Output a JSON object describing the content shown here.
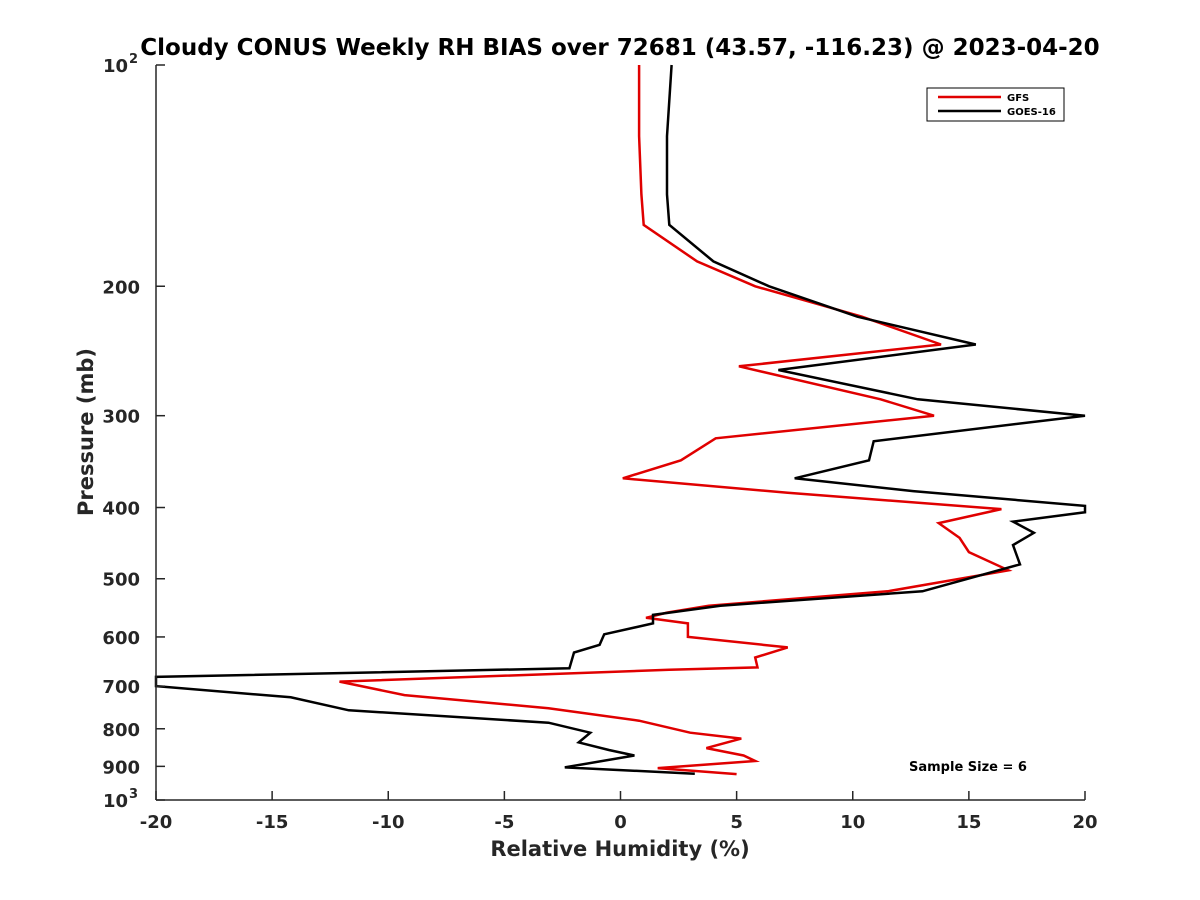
{
  "chart_data": {
    "type": "line",
    "title": "Cloudy CONUS Weekly RH BIAS over 72681 (43.57, -116.23) @ 2023-04-20",
    "xlabel": "Relative Humidity (%)",
    "ylabel": "Pressure (mb)",
    "xlim": [
      -20,
      20
    ],
    "ylim": [
      100,
      1000
    ],
    "y_scale": "log",
    "y_reversed": true,
    "x_ticks": [
      "-20",
      "-15",
      "-10",
      "-5",
      "0",
      "5",
      "10",
      "15",
      "20"
    ],
    "y_ticks": [
      {
        "value": 100,
        "base": "10",
        "exp": "2"
      },
      {
        "value": 200,
        "label": "200"
      },
      {
        "value": 300,
        "label": "300"
      },
      {
        "value": 400,
        "label": "400"
      },
      {
        "value": 500,
        "label": "500"
      },
      {
        "value": 600,
        "label": "600"
      },
      {
        "value": 700,
        "label": "700"
      },
      {
        "value": 800,
        "label": "800"
      },
      {
        "value": 900,
        "label": "900"
      },
      {
        "value": 1000,
        "base": "10",
        "exp": "3"
      }
    ],
    "grid": false,
    "legend_position": "top-right",
    "annotation": "Sample Size = 6",
    "series": [
      {
        "name": "GFS",
        "color": "#e00000",
        "points": [
          [
            0.8,
            100
          ],
          [
            0.8,
            125
          ],
          [
            0.9,
            150
          ],
          [
            1.0,
            165
          ],
          [
            3.3,
            185
          ],
          [
            5.8,
            200
          ],
          [
            10.4,
            220
          ],
          [
            13.8,
            240
          ],
          [
            5.1,
            257
          ],
          [
            11.2,
            285
          ],
          [
            13.5,
            300
          ],
          [
            4.1,
            322
          ],
          [
            2.6,
            345
          ],
          [
            0.1,
            365
          ],
          [
            7.2,
            382
          ],
          [
            16.4,
            402
          ],
          [
            13.7,
            420
          ],
          [
            14.6,
            440
          ],
          [
            15.0,
            460
          ],
          [
            16.7,
            487
          ],
          [
            11.5,
            520
          ],
          [
            3.8,
            544
          ],
          [
            2.0,
            556
          ],
          [
            1.1,
            565
          ],
          [
            2.9,
            575
          ],
          [
            2.9,
            600
          ],
          [
            7.2,
            620
          ],
          [
            5.8,
            640
          ],
          [
            5.9,
            660
          ],
          [
            2.1,
            665
          ],
          [
            -12.1,
            690
          ],
          [
            -9.3,
            720
          ],
          [
            -3.1,
            750
          ],
          [
            0.8,
            780
          ],
          [
            3.0,
            810
          ],
          [
            5.2,
            825
          ],
          [
            3.7,
            850
          ],
          [
            5.3,
            870
          ],
          [
            5.8,
            885
          ],
          [
            1.6,
            905
          ],
          [
            5.0,
            922
          ]
        ]
      },
      {
        "name": "GOES-16",
        "color": "#000000",
        "points": [
          [
            2.2,
            100
          ],
          [
            2.0,
            125
          ],
          [
            2.0,
            150
          ],
          [
            2.1,
            165
          ],
          [
            4.0,
            185
          ],
          [
            6.4,
            200
          ],
          [
            10.2,
            220
          ],
          [
            15.3,
            240
          ],
          [
            6.8,
            260
          ],
          [
            12.8,
            285
          ],
          [
            20.0,
            300
          ],
          [
            10.9,
            325
          ],
          [
            10.7,
            345
          ],
          [
            7.5,
            365
          ],
          [
            12.6,
            380
          ],
          [
            20.0,
            398
          ],
          [
            20.0,
            406
          ],
          [
            16.9,
            418
          ],
          [
            17.8,
            433
          ],
          [
            16.9,
            450
          ],
          [
            17.2,
            478
          ],
          [
            13.0,
            520
          ],
          [
            4.3,
            544
          ],
          [
            1.4,
            560
          ],
          [
            1.4,
            575
          ],
          [
            -0.7,
            595
          ],
          [
            -0.9,
            615
          ],
          [
            -2.0,
            630
          ],
          [
            -2.2,
            662
          ],
          [
            -20.0,
            680
          ],
          [
            -20.0,
            700
          ],
          [
            -14.2,
            725
          ],
          [
            -11.7,
            755
          ],
          [
            -3.1,
            785
          ],
          [
            -1.3,
            810
          ],
          [
            -1.8,
            835
          ],
          [
            -0.5,
            855
          ],
          [
            0.6,
            870
          ],
          [
            -2.4,
            903
          ],
          [
            3.2,
            921
          ]
        ]
      }
    ]
  }
}
